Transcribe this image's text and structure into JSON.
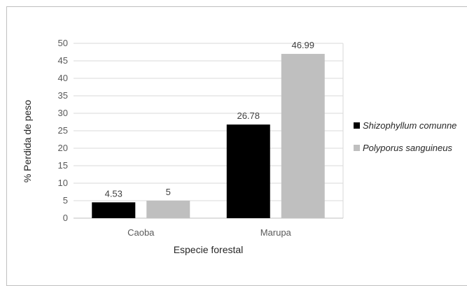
{
  "chart_data": {
    "type": "bar",
    "title": "",
    "xlabel": "Especie forestal",
    "ylabel": "% Perdida de peso",
    "categories": [
      "Caoba",
      "Marupa"
    ],
    "ylim": [
      0,
      50
    ],
    "yticks": [
      0,
      5,
      10,
      15,
      20,
      25,
      30,
      35,
      40,
      45,
      50
    ],
    "grid": true,
    "legend_position": "right",
    "series": [
      {
        "name": "Shizophyllum comunne",
        "values": [
          4.53,
          26.78
        ],
        "labels": [
          "4.53",
          "26.78"
        ],
        "color": "#000000"
      },
      {
        "name": "Polyporus sanguineus",
        "values": [
          5,
          46.99
        ],
        "labels": [
          "5",
          "46.99"
        ],
        "color": "#bfbfbf"
      }
    ]
  }
}
